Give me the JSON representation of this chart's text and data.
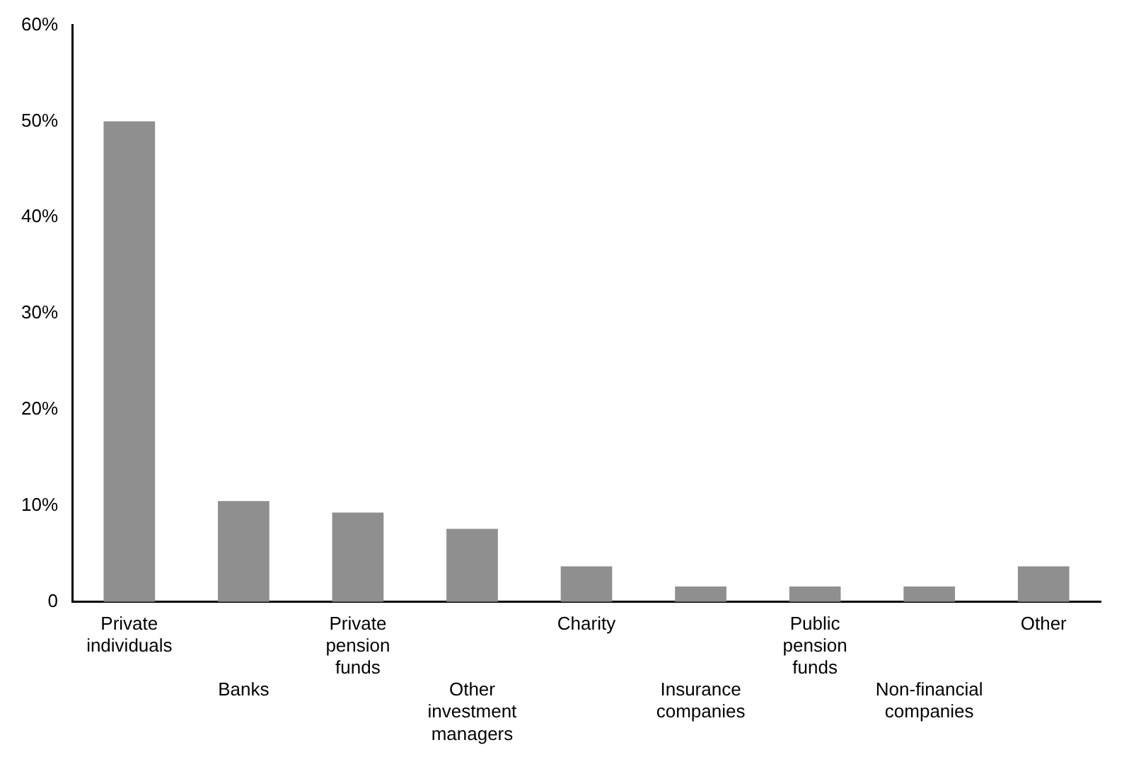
{
  "chart_data": {
    "type": "bar",
    "categories": [
      "Private individuals",
      "Banks",
      "Private pension funds",
      "Other investment managers",
      "Charity",
      "Insurance companies",
      "Public pension funds",
      "Non-financial companies",
      "Other"
    ],
    "values": [
      50,
      10.5,
      9.3,
      7.6,
      3.7,
      1.6,
      1.6,
      1.6,
      3.7
    ],
    "color": "#8f8f8f",
    "ylim": [
      0,
      60
    ],
    "yticks": [
      {
        "value": 0,
        "label": "0"
      },
      {
        "value": 10,
        "label": "10%"
      },
      {
        "value": 20,
        "label": "20%"
      },
      {
        "value": 30,
        "label": "30%"
      },
      {
        "value": 40,
        "label": "40%"
      },
      {
        "value": 50,
        "label": "50%"
      },
      {
        "value": 60,
        "label": "60%"
      }
    ],
    "grid": false,
    "legend": false
  }
}
